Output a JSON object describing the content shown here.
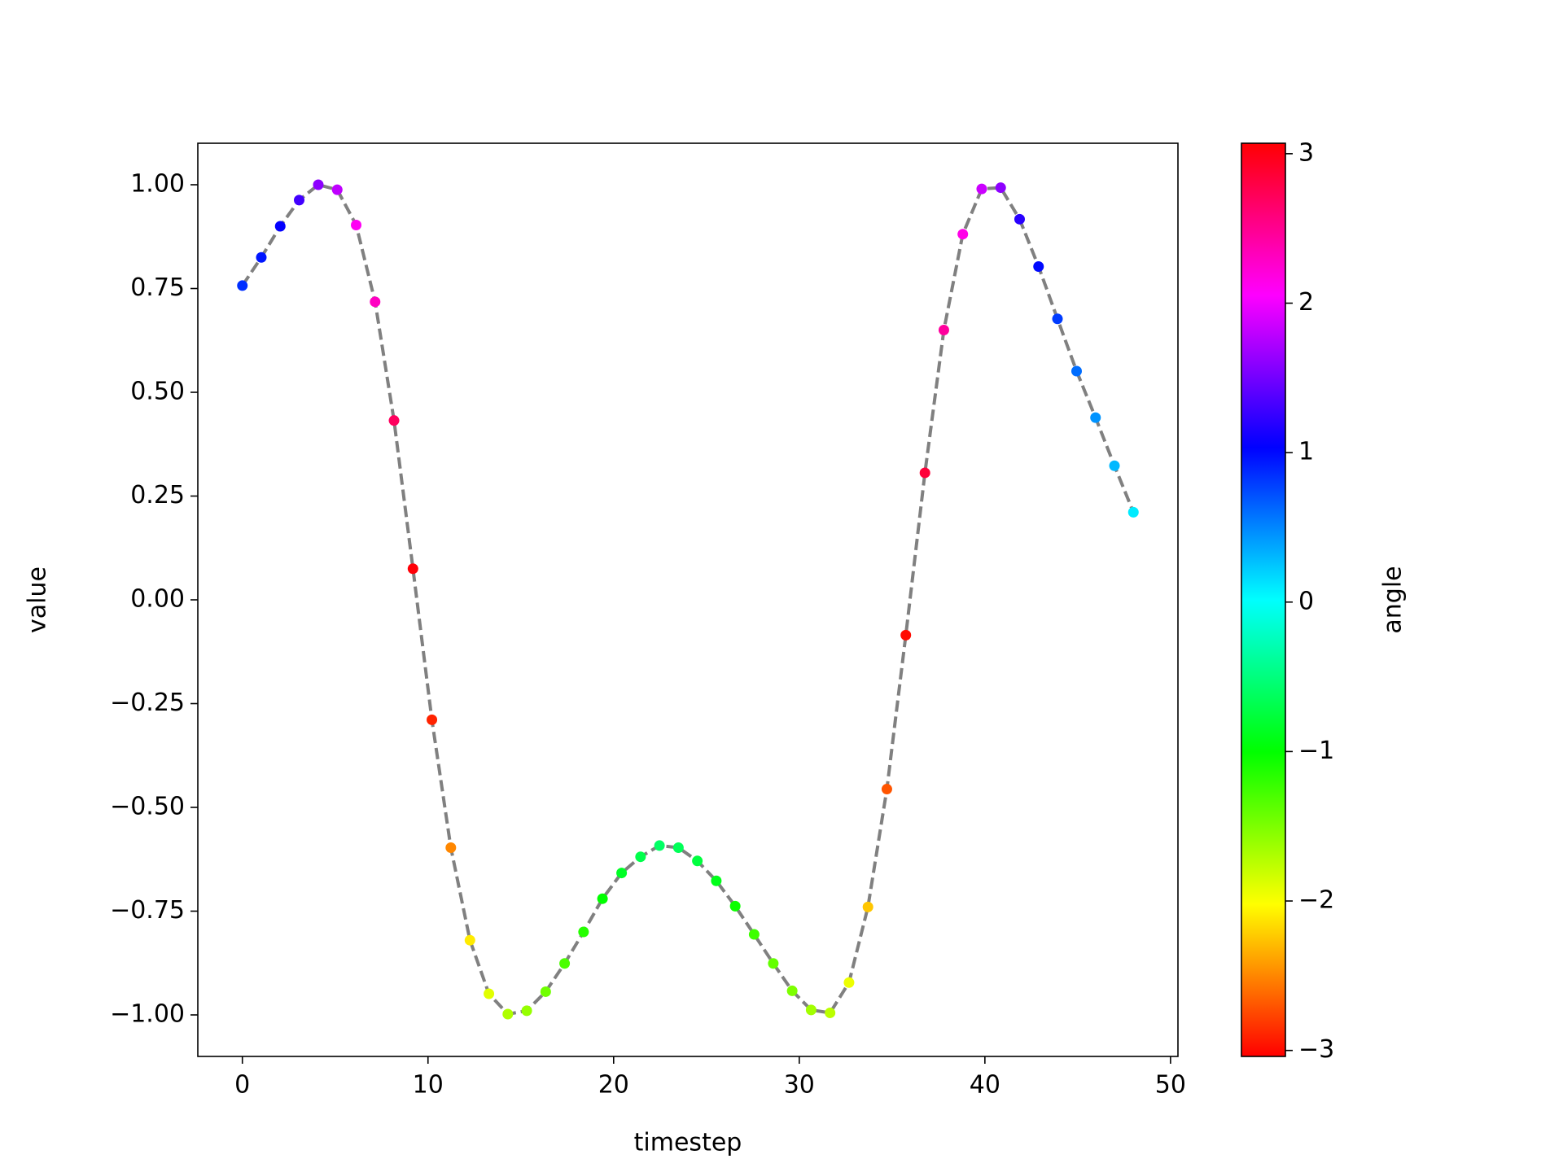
{
  "chart_data": {
    "type": "line-scatter",
    "x_label": "timestep",
    "y_label": "value",
    "colorbar_label": "angle",
    "x": [
      0,
      1.02,
      2.04,
      3.06,
      4.09,
      5.11,
      6.13,
      7.15,
      8.17,
      9.19,
      10.21,
      11.23,
      12.26,
      13.28,
      14.3,
      15.32,
      16.34,
      17.36,
      18.38,
      19.4,
      20.43,
      21.45,
      22.47,
      23.49,
      24.51,
      25.53,
      26.55,
      27.57,
      28.6,
      29.62,
      30.64,
      31.66,
      32.68,
      33.7,
      34.72,
      35.74,
      36.77,
      37.79,
      38.81,
      39.83,
      40.85,
      41.87,
      42.89,
      43.91,
      44.94,
      45.96,
      46.98,
      48
    ],
    "values": [
      0.757,
      0.825,
      0.9,
      0.963,
      1.0,
      0.988,
      0.903,
      0.718,
      0.432,
      0.075,
      -0.289,
      -0.597,
      -0.82,
      -0.949,
      -0.998,
      -0.99,
      -0.944,
      -0.876,
      -0.8,
      -0.72,
      -0.658,
      -0.619,
      -0.592,
      -0.597,
      -0.629,
      -0.677,
      -0.738,
      -0.806,
      -0.876,
      -0.942,
      -0.988,
      -0.995,
      -0.922,
      -0.74,
      -0.456,
      -0.085,
      0.306,
      0.65,
      0.881,
      0.99,
      0.993,
      0.917,
      0.803,
      0.677,
      0.551,
      0.439,
      0.323,
      0.211
    ],
    "angles": [
      0.85,
      0.95,
      1.05,
      1.3,
      1.6,
      1.8,
      2.1,
      2.3,
      2.7,
      3.05,
      -2.9,
      -2.5,
      -2.1,
      -1.9,
      -1.7,
      -1.6,
      -1.45,
      -1.3,
      -1.15,
      -1.0,
      -0.85,
      -0.7,
      -0.6,
      -0.65,
      -0.75,
      -0.9,
      -1.05,
      -1.25,
      -1.4,
      -1.5,
      -1.65,
      -1.75,
      -1.95,
      -2.25,
      -2.7,
      -3.0,
      2.85,
      2.45,
      2.15,
      1.85,
      1.6,
      1.2,
      1.0,
      0.8,
      0.6,
      0.45,
      0.3,
      0.1
    ],
    "line_color": "#808080",
    "line_style": "dashed",
    "colormap": "hsv",
    "clim": [
      -3.04,
      3.07
    ],
    "xlim": [
      -2.4,
      50.4
    ],
    "ylim": [
      -1.1,
      1.1
    ],
    "xticks": [
      0,
      10,
      20,
      30,
      40,
      50
    ],
    "yticks": [
      {
        "value": 1,
        "label": "1.00"
      },
      {
        "value": 0.75,
        "label": "0.75"
      },
      {
        "value": 0.5,
        "label": "0.50"
      },
      {
        "value": 0.25,
        "label": "0.25"
      },
      {
        "value": 0,
        "label": "0.00"
      },
      {
        "value": -0.25,
        "label": "−0.25"
      },
      {
        "value": -0.5,
        "label": "−0.50"
      },
      {
        "value": -0.75,
        "label": "−0.75"
      },
      {
        "value": -1,
        "label": "−1.00"
      }
    ],
    "cticks": [
      {
        "value": 3,
        "label": "3"
      },
      {
        "value": 2,
        "label": "2"
      },
      {
        "value": 1,
        "label": "1"
      },
      {
        "value": 0,
        "label": "0"
      },
      {
        "value": -1,
        "label": "−1"
      },
      {
        "value": -2,
        "label": "−2"
      },
      {
        "value": -3,
        "label": "−3"
      }
    ]
  }
}
